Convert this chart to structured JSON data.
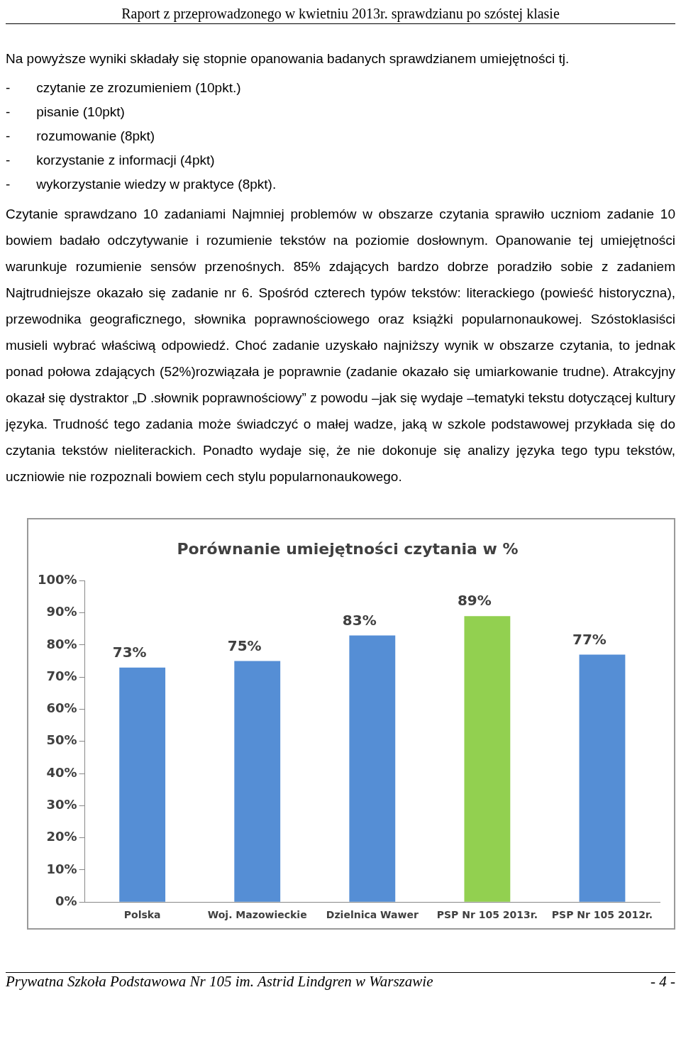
{
  "chart_data": {
    "type": "bar",
    "title": "Porównanie umiejętności czytania w %",
    "categories": [
      "Polska",
      "Woj. Mazowieckie",
      "Dzielnica Wawer",
      "PSP Nr 105 2013r.",
      "PSP Nr 105 2012r."
    ],
    "values": [
      73,
      75,
      83,
      89,
      77
    ],
    "colors": [
      "#558ed5",
      "#558ed5",
      "#558ed5",
      "#92d050",
      "#558ed5"
    ],
    "value_labels": [
      "73%",
      "75%",
      "83%",
      "89%",
      "77%"
    ],
    "ylim": [
      0,
      100
    ],
    "yticks": [
      {
        "value": 0,
        "label": "0%"
      },
      {
        "value": 10,
        "label": "10%"
      },
      {
        "value": 20,
        "label": "20%"
      },
      {
        "value": 30,
        "label": "30%"
      },
      {
        "value": 40,
        "label": "40%"
      },
      {
        "value": 50,
        "label": "50%"
      },
      {
        "value": 60,
        "label": "60%"
      },
      {
        "value": 70,
        "label": "70%"
      },
      {
        "value": 80,
        "label": "80%"
      },
      {
        "value": 90,
        "label": "90%"
      },
      {
        "value": 100,
        "label": "100%"
      }
    ],
    "grid": false,
    "legend": false,
    "annotations": [
      "Raport z przeprowadzonego w kwietniu 2013r. sprawdzianu po szóstej klasie",
      "Na powyższe wyniki składały się stopnie opanowania badanych sprawdzianem umiejętności tj.",
      "-\tczytanie ze zrozumieniem (10pkt.)",
      "-\tpisanie (10pkt)",
      "-\trozumowanie (8pkt)",
      "-\tkorzystanie z informacji (4pkt)",
      "-\twykorzystanie wiedzy w praktyce (8pkt).",
      "Czytanie sprawdzano 10 zadaniami Najmniej problemów w obszarze czytania sprawiło uczniom zadanie 10 bowiem badało odczytywanie i rozumienie tekstów na poziomie dosłownym. Opanowanie tej umiejętności warunkuje rozumienie sensów przenośnych. 85% zdających bardzo dobrze poradziło sobie z zadaniem Najtrudniejsze okazało się zadanie nr 6. Spośród czterech typów tekstów: literackiego (powieść historyczna), przewodnika geograficznego, słownika poprawnościowego oraz książki popularnonaukowej. Szóstoklasiści musieli wybrać właściwą odpowiedź. Choć zadanie uzyskało najniższy wynik w obszarze czytania, to jednak ponad połowa zdających (52%)rozwiązała je poprawnie (zadanie okazało się umiarkowanie trudne). Atrakcyjny okazał się dystraktor „D .słownik poprawnościowy” z powodu –jak się wydaje –tematyki tekstu dotyczącej kultury języka. Trudność tego zadania może świadczyć o małej wadze, jaką w szkole podstawowej przykłada się do czytania tekstów nieliterackich. Ponadto wydaje się, że nie dokonuje się analizy języka tego typu tekstów, uczniowie nie rozpoznali bowiem cech stylu popularnonaukowego.",
      "Prywatna Szkoła Podstawowa Nr 105 im. Astrid Lindgren w Warszawie",
      "- 4 -"
    ]
  }
}
